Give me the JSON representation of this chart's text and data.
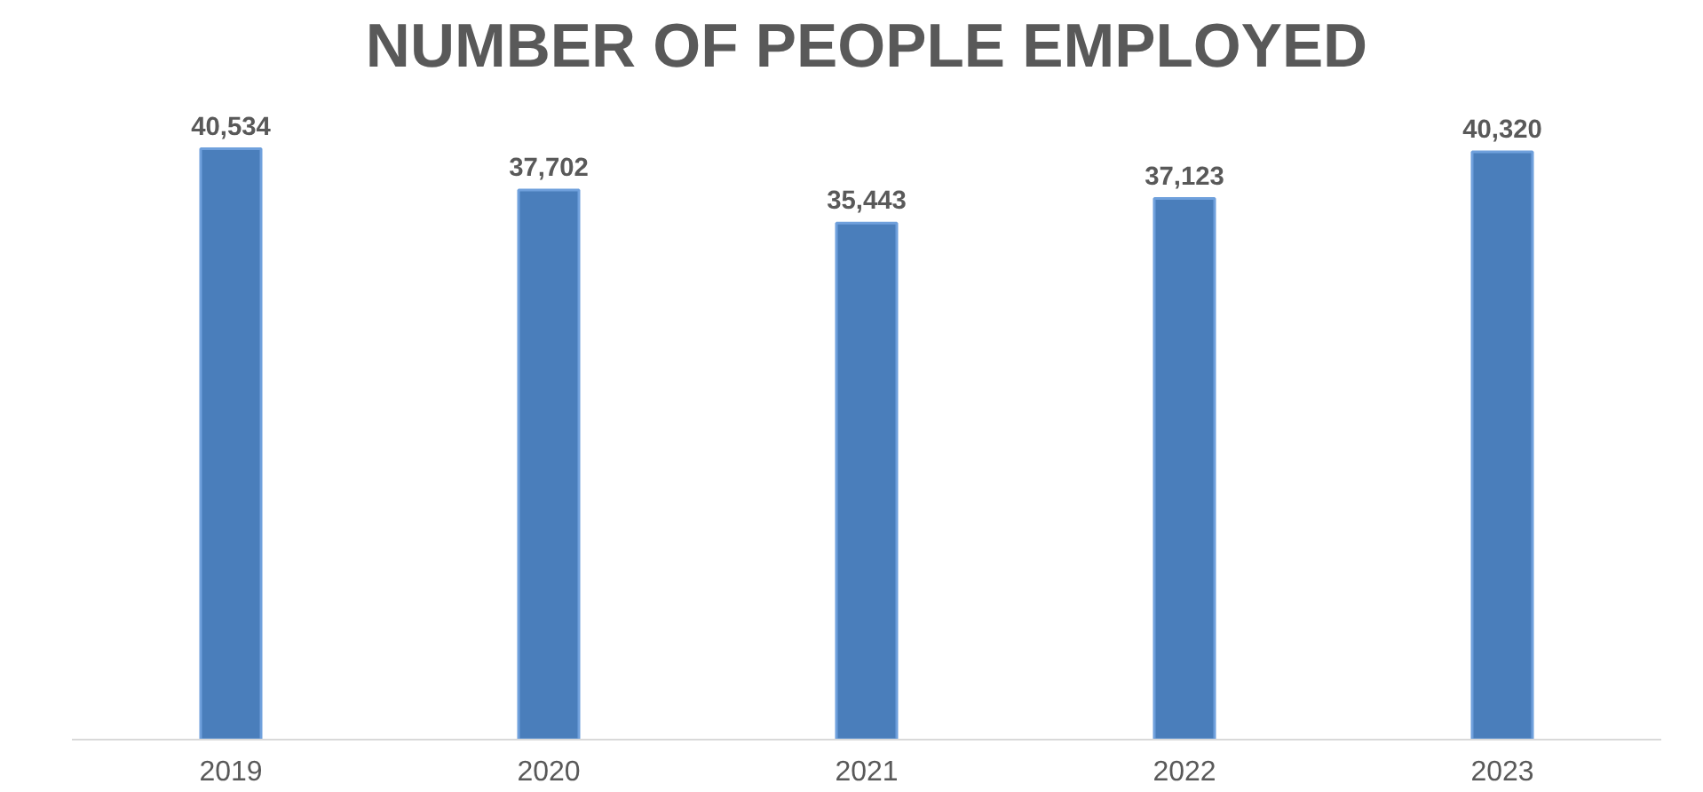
{
  "chart_data": {
    "type": "bar",
    "title": "NUMBER OF PEOPLE EMPLOYED",
    "categories": [
      "2019",
      "2020",
      "2021",
      "2022",
      "2023"
    ],
    "values": [
      40534,
      37702,
      35443,
      37123,
      40320
    ],
    "value_labels": [
      "40,534",
      "37,702",
      "35,443",
      "37,123",
      "40,320"
    ],
    "color": "#4a7ebb",
    "tick_labels": "x",
    "grid": false
  }
}
